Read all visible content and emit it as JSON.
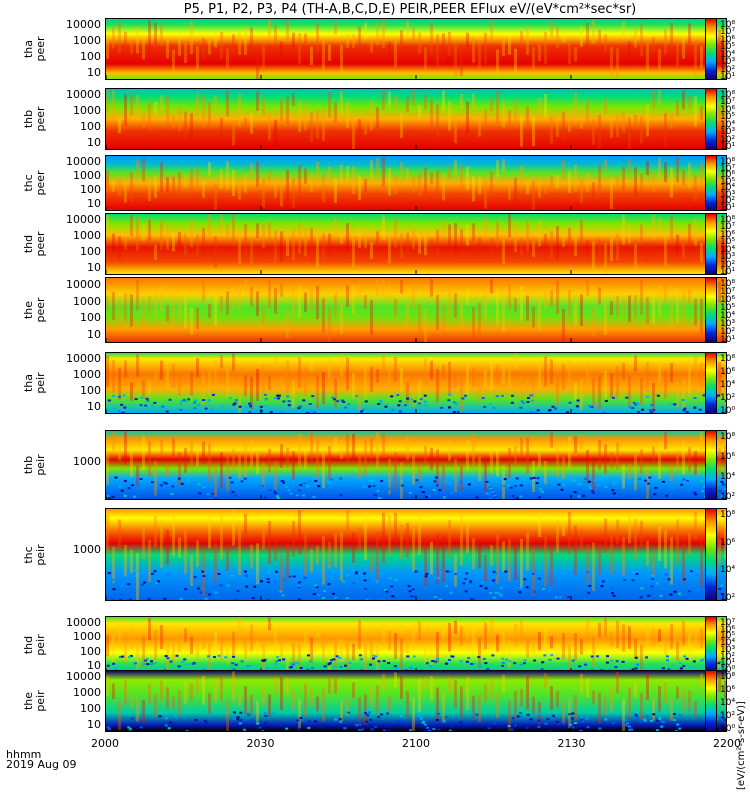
{
  "chart_data": {
    "type": "heatmap",
    "title": "P5, P1, P2, P3, P4 (TH-A,B,C,D,E) PEIR,PEER EFlux eV/(eV*cm²*sec*sr)",
    "x_ticks": [
      "2000",
      "2030",
      "2100",
      "2130",
      "2200"
    ],
    "x_info": [
      "hhmm",
      "2019 Aug 09"
    ],
    "colorbar_unit": "[eV/(cm²-s-sr-eV)]",
    "panels": [
      {
        "name": "tha-peer",
        "ylabel": [
          "tha",
          "peer"
        ],
        "yticks": [
          "10000",
          "1000",
          "100",
          "10"
        ],
        "cbticks": [
          "10⁸",
          "10⁷",
          "10⁶",
          "10⁵",
          "10⁴",
          "10³",
          "10²",
          "10¹"
        ]
      },
      {
        "name": "thb-peer",
        "ylabel": [
          "thb",
          "peer"
        ],
        "yticks": [
          "10000",
          "1000",
          "100",
          "10"
        ],
        "cbticks": [
          "10⁸",
          "10⁷",
          "10⁶",
          "10⁵",
          "10⁴",
          "10³",
          "10²",
          "10¹"
        ]
      },
      {
        "name": "thc-peer",
        "ylabel": [
          "thc",
          "peer"
        ],
        "yticks": [
          "10000",
          "1000",
          "100",
          "10"
        ],
        "cbticks": [
          "10⁸",
          "10⁷",
          "10⁶",
          "10⁵",
          "10⁴",
          "10³",
          "10²",
          "10¹"
        ]
      },
      {
        "name": "thd-peer",
        "ylabel": [
          "thd",
          "peer"
        ],
        "yticks": [
          "10000",
          "1000",
          "100",
          "10"
        ],
        "cbticks": [
          "10⁸",
          "10⁷",
          "10⁶",
          "10⁵",
          "10⁴",
          "10³",
          "10²",
          "10¹"
        ]
      },
      {
        "name": "the-peer",
        "ylabel": [
          "the",
          "peer"
        ],
        "yticks": [
          "10000",
          "1000",
          "100",
          "10"
        ],
        "cbticks": [
          "10⁸",
          "10⁷",
          "10⁶",
          "10⁵",
          "10⁴",
          "10³",
          "10²",
          "10¹"
        ]
      },
      {
        "name": "tha-peir",
        "ylabel": [
          "tha",
          "peir"
        ],
        "yticks": [
          "10000",
          "1000",
          "100",
          "10"
        ],
        "cbticks": [
          "10⁸",
          "10⁶",
          "10⁴",
          "10²",
          "10⁰"
        ]
      },
      {
        "name": "thb-peir",
        "ylabel": [
          "thb",
          "peir"
        ],
        "yticks": [
          "1000"
        ],
        "cbticks": [
          "10⁸",
          "10⁶",
          "10⁴",
          "10²"
        ]
      },
      {
        "name": "thc-peir",
        "ylabel": [
          "thc",
          "peir"
        ],
        "yticks": [
          "1000"
        ],
        "cbticks": [
          "10⁸",
          "10⁶",
          "10⁴",
          "10²"
        ]
      },
      {
        "name": "thd-peir",
        "ylabel": [
          "thd",
          "peir"
        ],
        "yticks": [
          "10000",
          "1000",
          "100",
          "10"
        ],
        "cbticks": [
          "10⁷",
          "10⁶",
          "10⁵",
          "10⁴",
          "10³",
          "10²",
          "10¹",
          "10⁰"
        ]
      },
      {
        "name": "the-peir",
        "ylabel": [
          "the",
          "peir"
        ],
        "yticks": [
          "10000",
          "1000",
          "100",
          "10"
        ],
        "cbticks": [
          "10⁸",
          "10⁶",
          "10⁴",
          "10²",
          "10⁰"
        ]
      }
    ]
  }
}
